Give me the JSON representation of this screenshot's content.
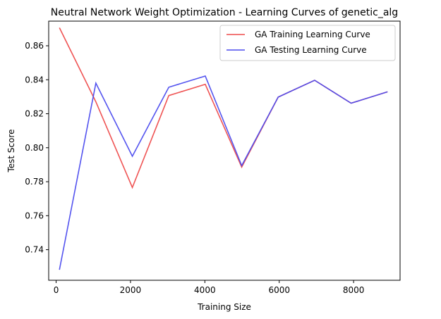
{
  "chart_data": {
    "type": "line",
    "title": "Neutral Network Weight Optimization - Learning Curves of genetic_alg",
    "xlabel": "Training Size",
    "ylabel": "Test Score",
    "xlim": [
      -200,
      9250
    ],
    "ylim": [
      0.722,
      0.8745
    ],
    "xticks": [
      0,
      2000,
      4000,
      6000,
      8000
    ],
    "xtick_labels": [
      "0",
      "2000",
      "4000",
      "6000",
      "8000"
    ],
    "yticks": [
      0.74,
      0.76,
      0.78,
      0.8,
      0.82,
      0.84,
      0.86
    ],
    "ytick_labels": [
      "0.74",
      "0.76",
      "0.78",
      "0.80",
      "0.82",
      "0.84",
      "0.86"
    ],
    "grid": false,
    "legend_position": "top-right",
    "x": [
      89,
      1069,
      2050,
      3030,
      4011,
      4991,
      5972,
      6952,
      7933,
      8913
    ],
    "series": [
      {
        "name": "GA Training Learning Curve",
        "color": "#ee4b4b",
        "values": [
          0.8706,
          0.827,
          0.7766,
          0.8307,
          0.8373,
          0.7886,
          0.8298,
          0.8397,
          0.8262,
          0.8329
        ]
      },
      {
        "name": "GA Testing Learning Curve",
        "color": "#4b4bee",
        "values": [
          0.7282,
          0.838,
          0.795,
          0.8356,
          0.8422,
          0.7895,
          0.8298,
          0.8397,
          0.8262,
          0.8329
        ]
      }
    ]
  }
}
